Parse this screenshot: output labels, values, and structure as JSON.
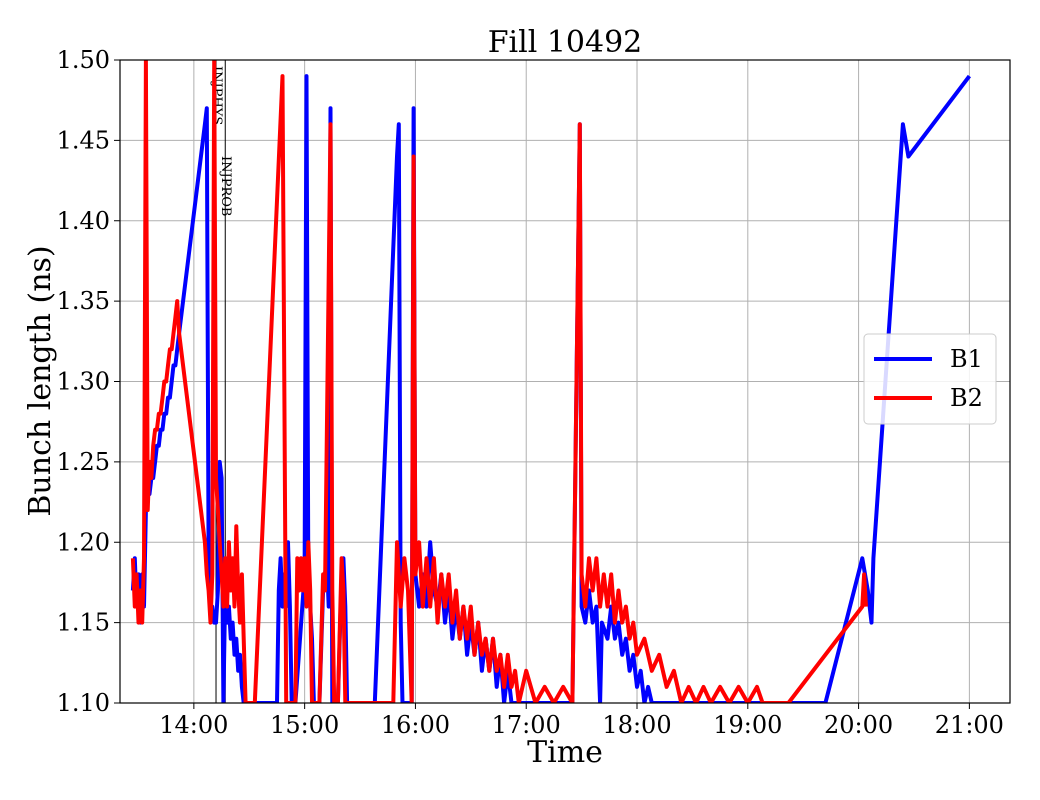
{
  "chart_data": {
    "type": "line",
    "title": "Fill 10492",
    "xlabel": "Time",
    "ylabel": "Bunch length (ns)",
    "xlim": [
      "13:20",
      "21:22"
    ],
    "ylim": [
      1.1,
      1.5
    ],
    "x_ticks": [
      "14:00",
      "15:00",
      "16:00",
      "17:00",
      "18:00",
      "19:00",
      "20:00",
      "21:00"
    ],
    "y_ticks": [
      "1.10",
      "1.15",
      "1.20",
      "1.25",
      "1.30",
      "1.35",
      "1.40",
      "1.45",
      "1.50"
    ],
    "grid": true,
    "legend_position": "center-right",
    "markers": [
      {
        "label": "INJPHYS",
        "time": "14:12"
      },
      {
        "label": "INJPROB",
        "time": "14:17"
      }
    ],
    "series": [
      {
        "name": "B1",
        "color": "#0000ff",
        "points": [
          [
            "13:27",
            1.17
          ],
          [
            "13:28",
            1.19
          ],
          [
            "13:29",
            1.16
          ],
          [
            "13:30",
            1.18
          ],
          [
            "13:31",
            1.15
          ],
          [
            "13:32",
            1.18
          ],
          [
            "13:33",
            1.16
          ],
          [
            "13:34",
            1.22
          ],
          [
            "13:35",
            1.23
          ],
          [
            "13:36",
            1.23
          ],
          [
            "13:37",
            1.24
          ],
          [
            "13:38",
            1.24
          ],
          [
            "13:39",
            1.25
          ],
          [
            "13:40",
            1.26
          ],
          [
            "13:41",
            1.26
          ],
          [
            "13:42",
            1.27
          ],
          [
            "13:43",
            1.27
          ],
          [
            "13:44",
            1.28
          ],
          [
            "13:45",
            1.28
          ],
          [
            "13:46",
            1.29
          ],
          [
            "13:47",
            1.29
          ],
          [
            "13:48",
            1.3
          ],
          [
            "13:49",
            1.31
          ],
          [
            "13:50",
            1.31
          ],
          [
            "13:51",
            1.32
          ],
          [
            "13:52",
            1.33
          ],
          [
            "14:06",
            1.46
          ],
          [
            "14:07",
            1.47
          ],
          [
            "14:08",
            1.19
          ],
          [
            "14:09",
            1.16
          ],
          [
            "14:10",
            1.16
          ],
          [
            "14:11",
            1.15
          ],
          [
            "14:12",
            1.15
          ],
          [
            "14:13",
            1.17
          ],
          [
            "14:14",
            1.25
          ],
          [
            "14:15",
            1.24
          ],
          [
            "14:16",
            1.1
          ],
          [
            "14:17",
            1.17
          ],
          [
            "14:18",
            1.15
          ],
          [
            "14:19",
            1.16
          ],
          [
            "14:20",
            1.14
          ],
          [
            "14:21",
            1.15
          ],
          [
            "14:22",
            1.13
          ],
          [
            "14:23",
            1.14
          ],
          [
            "14:24",
            1.12
          ],
          [
            "14:25",
            1.13
          ],
          [
            "14:26",
            1.11
          ],
          [
            "14:27",
            1.1
          ],
          [
            "14:30",
            1.1
          ],
          [
            "14:45",
            1.1
          ],
          [
            "14:46",
            1.17
          ],
          [
            "14:47",
            1.19
          ],
          [
            "14:48",
            1.16
          ],
          [
            "14:49",
            1.18
          ],
          [
            "14:50",
            1.16
          ],
          [
            "14:51",
            1.2
          ],
          [
            "14:52",
            1.16
          ],
          [
            "14:53",
            1.1
          ],
          [
            "14:55",
            1.1
          ],
          [
            "15:00",
            1.18
          ],
          [
            "15:01",
            1.49
          ],
          [
            "15:02",
            1.18
          ],
          [
            "15:03",
            1.16
          ],
          [
            "15:04",
            1.14
          ],
          [
            "15:05",
            1.1
          ],
          [
            "15:08",
            1.1
          ],
          [
            "15:10",
            1.17
          ],
          [
            "15:11",
            1.18
          ],
          [
            "15:12",
            1.19
          ],
          [
            "15:13",
            1.16
          ],
          [
            "15:14",
            1.47
          ],
          [
            "15:15",
            1.1
          ],
          [
            "15:18",
            1.1
          ],
          [
            "15:20",
            1.18
          ],
          [
            "15:21",
            1.19
          ],
          [
            "15:22",
            1.16
          ],
          [
            "15:23",
            1.1
          ],
          [
            "15:38",
            1.1
          ],
          [
            "15:50",
            1.44
          ],
          [
            "15:51",
            1.46
          ],
          [
            "15:52",
            1.15
          ],
          [
            "15:53",
            1.1
          ],
          [
            "15:58",
            1.1
          ],
          [
            "15:59",
            1.47
          ],
          [
            "16:00",
            1.18
          ],
          [
            "16:02",
            1.16
          ],
          [
            "16:04",
            1.18
          ],
          [
            "16:06",
            1.16
          ],
          [
            "16:08",
            1.2
          ],
          [
            "16:10",
            1.17
          ],
          [
            "16:12",
            1.16
          ],
          [
            "16:14",
            1.18
          ],
          [
            "16:16",
            1.15
          ],
          [
            "16:18",
            1.17
          ],
          [
            "16:20",
            1.14
          ],
          [
            "16:22",
            1.16
          ],
          [
            "16:24",
            1.14
          ],
          [
            "16:26",
            1.16
          ],
          [
            "16:28",
            1.13
          ],
          [
            "16:30",
            1.15
          ],
          [
            "16:32",
            1.13
          ],
          [
            "16:34",
            1.15
          ],
          [
            "16:36",
            1.12
          ],
          [
            "16:38",
            1.14
          ],
          [
            "16:40",
            1.12
          ],
          [
            "16:42",
            1.14
          ],
          [
            "16:44",
            1.11
          ],
          [
            "16:46",
            1.13
          ],
          [
            "16:48",
            1.1
          ],
          [
            "16:50",
            1.12
          ],
          [
            "16:52",
            1.1
          ],
          [
            "17:25",
            1.1
          ],
          [
            "17:29",
            1.46
          ],
          [
            "17:30",
            1.16
          ],
          [
            "17:32",
            1.15
          ],
          [
            "17:34",
            1.17
          ],
          [
            "17:36",
            1.15
          ],
          [
            "17:38",
            1.16
          ],
          [
            "17:40",
            1.1
          ],
          [
            "17:41",
            1.15
          ],
          [
            "17:44",
            1.14
          ],
          [
            "17:46",
            1.16
          ],
          [
            "17:48",
            1.14
          ],
          [
            "17:50",
            1.15
          ],
          [
            "17:52",
            1.13
          ],
          [
            "17:54",
            1.14
          ],
          [
            "17:56",
            1.12
          ],
          [
            "17:58",
            1.13
          ],
          [
            "18:00",
            1.11
          ],
          [
            "18:02",
            1.12
          ],
          [
            "18:04",
            1.1
          ],
          [
            "18:06",
            1.11
          ],
          [
            "18:08",
            1.1
          ],
          [
            "18:25",
            1.1
          ],
          [
            "19:42",
            1.1
          ],
          [
            "20:02",
            1.19
          ],
          [
            "20:05",
            1.17
          ],
          [
            "20:07",
            1.15
          ],
          [
            "20:08",
            1.19
          ],
          [
            "20:24",
            1.46
          ],
          [
            "20:27",
            1.44
          ],
          [
            "21:00",
            1.49
          ]
        ]
      },
      {
        "name": "B2",
        "color": "#ff0000",
        "points": [
          [
            "13:27",
            1.19
          ],
          [
            "13:28",
            1.16
          ],
          [
            "13:29",
            1.18
          ],
          [
            "13:30",
            1.15
          ],
          [
            "13:31",
            1.17
          ],
          [
            "13:32",
            1.15
          ],
          [
            "13:33",
            1.19
          ],
          [
            "13:34",
            1.5
          ],
          [
            "13:35",
            1.22
          ],
          [
            "13:36",
            1.25
          ],
          [
            "13:37",
            1.24
          ],
          [
            "13:38",
            1.26
          ],
          [
            "13:39",
            1.27
          ],
          [
            "13:40",
            1.27
          ],
          [
            "13:41",
            1.28
          ],
          [
            "13:42",
            1.28
          ],
          [
            "13:43",
            1.29
          ],
          [
            "13:44",
            1.3
          ],
          [
            "13:45",
            1.3
          ],
          [
            "13:46",
            1.31
          ],
          [
            "13:47",
            1.32
          ],
          [
            "13:48",
            1.32
          ],
          [
            "13:49",
            1.33
          ],
          [
            "13:50",
            1.34
          ],
          [
            "13:51",
            1.35
          ],
          [
            "13:52",
            1.33
          ],
          [
            "14:06",
            1.2
          ],
          [
            "14:07",
            1.18
          ],
          [
            "14:08",
            1.17
          ],
          [
            "14:09",
            1.15
          ],
          [
            "14:10",
            1.18
          ],
          [
            "14:11",
            1.5
          ],
          [
            "14:12",
            1.24
          ],
          [
            "14:13",
            1.22
          ],
          [
            "14:14",
            1.2
          ],
          [
            "14:15",
            1.18
          ],
          [
            "14:16",
            1.16
          ],
          [
            "14:17",
            1.19
          ],
          [
            "14:18",
            1.16
          ],
          [
            "14:19",
            1.2
          ],
          [
            "14:20",
            1.17
          ],
          [
            "14:21",
            1.19
          ],
          [
            "14:22",
            1.16
          ],
          [
            "14:23",
            1.21
          ],
          [
            "14:24",
            1.17
          ],
          [
            "14:25",
            1.15
          ],
          [
            "14:26",
            1.18
          ],
          [
            "14:27",
            1.14
          ],
          [
            "14:28",
            1.1
          ],
          [
            "14:33",
            1.1
          ],
          [
            "14:48",
            1.49
          ],
          [
            "14:50",
            1.1
          ],
          [
            "14:55",
            1.1
          ],
          [
            "14:56",
            1.19
          ],
          [
            "14:57",
            1.17
          ],
          [
            "14:58",
            1.19
          ],
          [
            "14:59",
            1.17
          ],
          [
            "15:00",
            1.19
          ],
          [
            "15:01",
            1.16
          ],
          [
            "15:02",
            1.2
          ],
          [
            "15:03",
            1.17
          ],
          [
            "15:04",
            1.1
          ],
          [
            "15:08",
            1.1
          ],
          [
            "15:10",
            1.18
          ],
          [
            "15:11",
            1.17
          ],
          [
            "15:14",
            1.46
          ],
          [
            "15:15",
            1.17
          ],
          [
            "15:16",
            1.1
          ],
          [
            "15:18",
            1.1
          ],
          [
            "15:20",
            1.19
          ],
          [
            "15:21",
            1.17
          ],
          [
            "15:22",
            1.1
          ],
          [
            "15:48",
            1.1
          ],
          [
            "15:50",
            1.2
          ],
          [
            "15:52",
            1.16
          ],
          [
            "15:54",
            1.19
          ],
          [
            "15:56",
            1.17
          ],
          [
            "15:58",
            1.1
          ],
          [
            "15:59",
            1.44
          ],
          [
            "16:00",
            1.18
          ],
          [
            "16:02",
            1.2
          ],
          [
            "16:04",
            1.16
          ],
          [
            "16:06",
            1.19
          ],
          [
            "16:08",
            1.16
          ],
          [
            "16:10",
            1.19
          ],
          [
            "16:12",
            1.15
          ],
          [
            "16:14",
            1.18
          ],
          [
            "16:16",
            1.16
          ],
          [
            "16:18",
            1.18
          ],
          [
            "16:20",
            1.15
          ],
          [
            "16:22",
            1.17
          ],
          [
            "16:24",
            1.14
          ],
          [
            "16:26",
            1.16
          ],
          [
            "16:28",
            1.14
          ],
          [
            "16:30",
            1.16
          ],
          [
            "16:32",
            1.13
          ],
          [
            "16:34",
            1.15
          ],
          [
            "16:36",
            1.13
          ],
          [
            "16:38",
            1.14
          ],
          [
            "16:40",
            1.12
          ],
          [
            "16:42",
            1.14
          ],
          [
            "16:44",
            1.12
          ],
          [
            "16:46",
            1.13
          ],
          [
            "16:48",
            1.11
          ],
          [
            "16:50",
            1.13
          ],
          [
            "16:52",
            1.11
          ],
          [
            "16:54",
            1.12
          ],
          [
            "16:56",
            1.1
          ],
          [
            "17:00",
            1.12
          ],
          [
            "17:05",
            1.1
          ],
          [
            "17:10",
            1.11
          ],
          [
            "17:15",
            1.1
          ],
          [
            "17:20",
            1.11
          ],
          [
            "17:25",
            1.1
          ],
          [
            "17:29",
            1.46
          ],
          [
            "17:30",
            1.18
          ],
          [
            "17:32",
            1.16
          ],
          [
            "17:34",
            1.19
          ],
          [
            "17:36",
            1.17
          ],
          [
            "17:38",
            1.19
          ],
          [
            "17:40",
            1.16
          ],
          [
            "17:42",
            1.18
          ],
          [
            "17:44",
            1.16
          ],
          [
            "17:46",
            1.18
          ],
          [
            "17:48",
            1.15
          ],
          [
            "17:50",
            1.17
          ],
          [
            "17:52",
            1.15
          ],
          [
            "17:54",
            1.16
          ],
          [
            "17:56",
            1.14
          ],
          [
            "17:58",
            1.15
          ],
          [
            "18:00",
            1.13
          ],
          [
            "18:04",
            1.14
          ],
          [
            "18:08",
            1.12
          ],
          [
            "18:12",
            1.13
          ],
          [
            "18:16",
            1.11
          ],
          [
            "18:20",
            1.12
          ],
          [
            "18:24",
            1.1
          ],
          [
            "18:28",
            1.11
          ],
          [
            "18:32",
            1.1
          ],
          [
            "18:36",
            1.11
          ],
          [
            "18:40",
            1.1
          ],
          [
            "18:45",
            1.11
          ],
          [
            "18:50",
            1.1
          ],
          [
            "18:55",
            1.11
          ],
          [
            "19:00",
            1.1
          ],
          [
            "19:05",
            1.11
          ],
          [
            "19:08",
            1.1
          ],
          [
            "19:22",
            1.1
          ],
          [
            "20:02",
            1.16
          ],
          [
            "20:03",
            1.18
          ],
          [
            "20:04",
            1.16
          ]
        ]
      }
    ]
  }
}
